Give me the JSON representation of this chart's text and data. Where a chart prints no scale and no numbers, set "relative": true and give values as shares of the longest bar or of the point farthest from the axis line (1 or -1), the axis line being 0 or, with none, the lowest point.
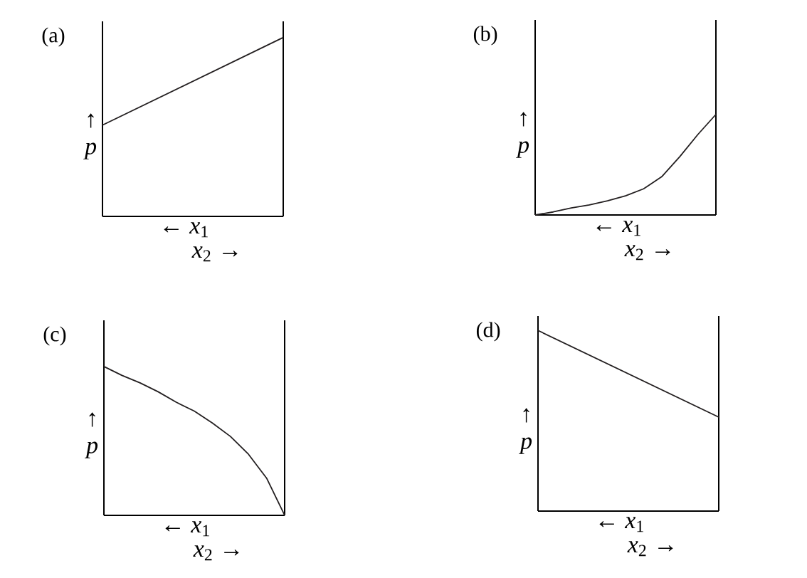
{
  "chart_data": [
    {
      "type": "line",
      "title": "(a)",
      "ylabel": "↑ *p*",
      "xlabel": "← *x*$_{1}$",
      "annotations": [
        "*x*$_{2}$ →"
      ],
      "relative": true,
      "categories": [
        null,
        null
      ],
      "values": [
        0.51,
        1
      ],
      "color": "#231f20"
    },
    {
      "type": "line",
      "title": "(b)",
      "ylabel": "↑ *p*",
      "xlabel": "← *x*$_{1}$",
      "annotations": [
        "*x*$_{2}$ →"
      ],
      "relative": true,
      "categories": [
        null,
        null,
        null,
        null,
        null,
        null,
        null,
        null,
        null,
        null,
        null
      ],
      "values": [
        0,
        0.03,
        0.07,
        0.1,
        0.14,
        0.19,
        0.26,
        0.38,
        0.58,
        0.8,
        1
      ],
      "color": "#231f20"
    },
    {
      "type": "line",
      "title": "(c)",
      "ylabel": "↑ *p*",
      "xlabel": "← *x*$_{1}$",
      "annotations": [
        "*x*$_{2}$ →"
      ],
      "relative": true,
      "categories": [
        null,
        null,
        null,
        null,
        null,
        null,
        null,
        null,
        null,
        null,
        null
      ],
      "values": [
        1,
        0.94,
        0.89,
        0.83,
        0.76,
        0.7,
        0.62,
        0.53,
        0.41,
        0.25,
        0
      ],
      "color": "#231f20"
    },
    {
      "type": "line",
      "title": "(d)",
      "ylabel": "↑ *p*",
      "xlabel": "← *x*$_{1}$",
      "annotations": [
        "*x*$_{2}$ →"
      ],
      "relative": true,
      "categories": [
        null,
        null
      ],
      "values": [
        1,
        0.52
      ],
      "color": "#231f20"
    }
  ]
}
